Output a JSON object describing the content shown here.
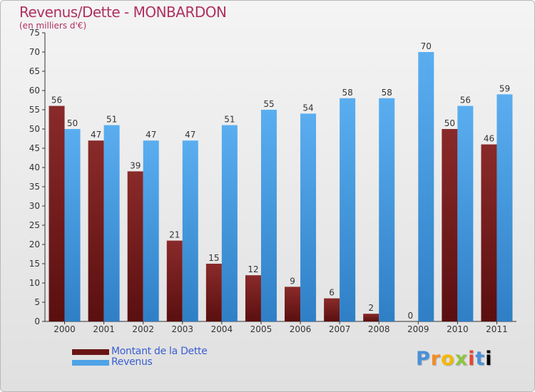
{
  "title": "Revenus/Dette - MONBARDON",
  "subtitle": "(en milliers d'€)",
  "logo_text": "Proxiti",
  "colors": {
    "debt": "#7a1f1f",
    "revenue": "#4ea3e6",
    "title": "#b03060",
    "legend_text": "#3a5fd0"
  },
  "chart_data": {
    "type": "bar",
    "title": "Revenus/Dette - MONBARDON",
    "subtitle": "(en milliers d'€)",
    "categories": [
      "2000",
      "2001",
      "2002",
      "2003",
      "2004",
      "2005",
      "2006",
      "2007",
      "2008",
      "2009",
      "2010",
      "2011"
    ],
    "series": [
      {
        "name": "Montant de la Dette",
        "values": [
          56,
          47,
          39,
          21,
          15,
          12,
          9,
          6,
          2,
          0,
          50,
          46
        ]
      },
      {
        "name": "Revenus",
        "values": [
          50,
          51,
          47,
          47,
          51,
          55,
          54,
          58,
          58,
          70,
          56,
          59
        ]
      }
    ],
    "ylim": [
      0,
      75
    ],
    "yticks": [
      0,
      5,
      10,
      15,
      20,
      25,
      30,
      35,
      40,
      45,
      50,
      55,
      60,
      65,
      70,
      75
    ],
    "grid": false,
    "legend_position": "bottom-left"
  }
}
